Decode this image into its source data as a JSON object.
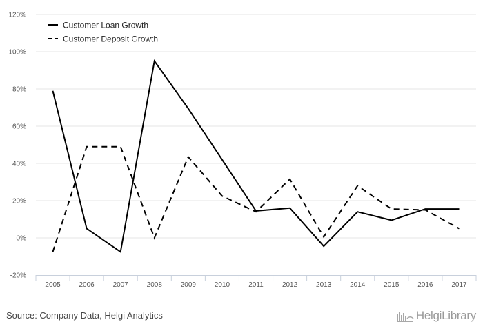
{
  "chart_data": {
    "type": "line",
    "categories": [
      "2005",
      "2006",
      "2007",
      "2008",
      "2009",
      "2010",
      "2011",
      "2012",
      "2013",
      "2014",
      "2015",
      "2016",
      "2017"
    ],
    "ylim": [
      -20,
      120
    ],
    "yticks": [
      -20,
      0,
      20,
      40,
      60,
      80,
      100,
      120
    ],
    "ytick_labels": [
      "-20%",
      "0%",
      "20%",
      "40%",
      "60%",
      "80%",
      "100%",
      "120%"
    ],
    "grid": true,
    "legend_position": "top-left",
    "series": [
      {
        "name": "Customer Loan Growth",
        "style": "solid",
        "values": [
          79,
          5,
          -7.5,
          95,
          69.5,
          42,
          14.5,
          16,
          -4.5,
          14,
          9.5,
          15.5,
          15.5
        ]
      },
      {
        "name": "Customer Deposit Growth",
        "style": "dashed",
        "values": [
          -7.5,
          49,
          49,
          0,
          43.5,
          22.5,
          14,
          31.5,
          0.5,
          28,
          15.5,
          15,
          5
        ]
      }
    ],
    "colors": {
      "line": "#000000",
      "grid": "#e6e6e6",
      "axis": "#c8d0dc"
    }
  },
  "footer": {
    "source": "Source: Company Data, Helgi Analytics",
    "logo_text": "HelgiLibrary"
  }
}
